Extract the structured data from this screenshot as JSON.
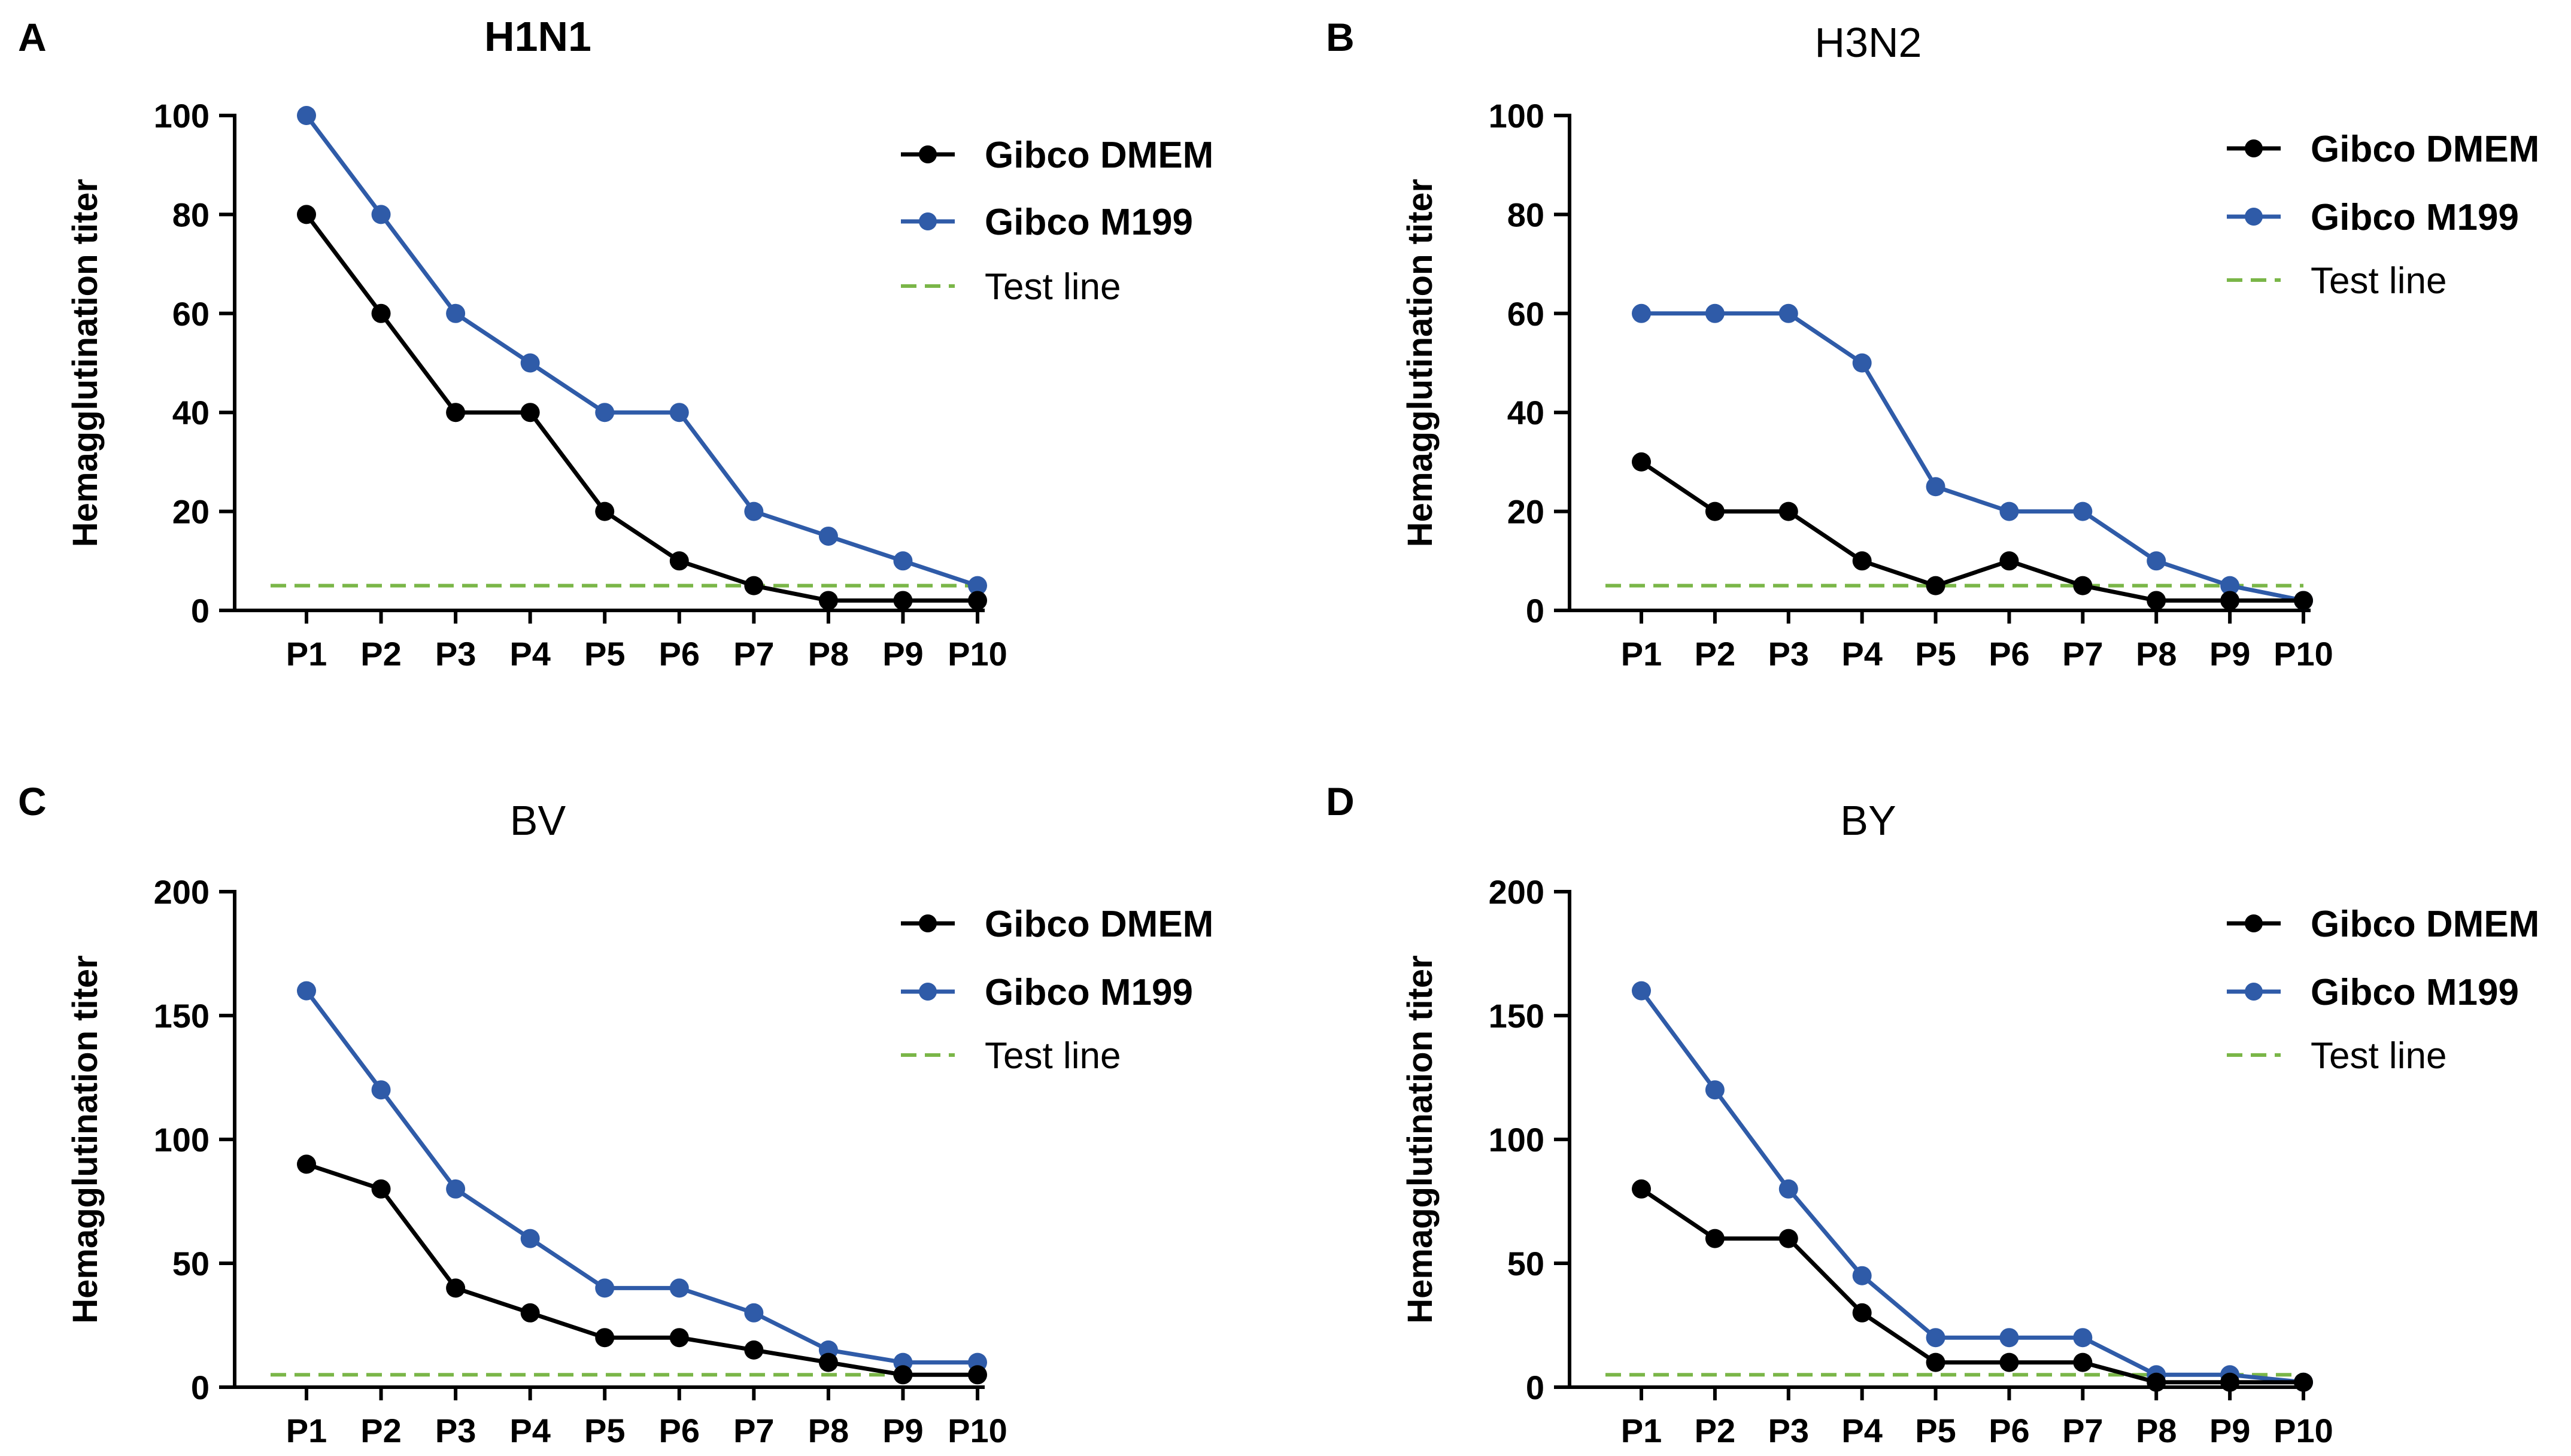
{
  "figure": {
    "colors": {
      "dmem": "#000000",
      "m199": "#2f5ba8",
      "test_line": "#7ab648"
    }
  },
  "chart_data": [
    {
      "type": "line",
      "panel": "A",
      "title": "H1N1",
      "title_bold": true,
      "xlabel": "",
      "ylabel": "Hemagglutination titer",
      "categories": [
        "P1",
        "P2",
        "P3",
        "P4",
        "P5",
        "P6",
        "P7",
        "P8",
        "P9",
        "P10"
      ],
      "ylim": [
        0,
        100
      ],
      "yticks": [
        0,
        20,
        40,
        60,
        80,
        100
      ],
      "legend_position": "top-right",
      "series": [
        {
          "name": "Gibco DMEM",
          "color": "#000000",
          "values": [
            80,
            60,
            40,
            40,
            20,
            10,
            5,
            2,
            2,
            2
          ]
        },
        {
          "name": "Gibco M199",
          "color": "#2f5ba8",
          "values": [
            100,
            80,
            60,
            50,
            40,
            40,
            20,
            15,
            10,
            5
          ]
        }
      ],
      "reference_line": {
        "name": "Test line",
        "value": 5,
        "color": "#7ab648",
        "style": "dashed"
      }
    },
    {
      "type": "line",
      "panel": "B",
      "title": "H3N2",
      "title_bold": false,
      "xlabel": "",
      "ylabel": "Hemagglutination titer",
      "categories": [
        "P1",
        "P2",
        "P3",
        "P4",
        "P5",
        "P6",
        "P7",
        "P8",
        "P9",
        "P10"
      ],
      "ylim": [
        0,
        100
      ],
      "yticks": [
        0,
        20,
        40,
        60,
        80,
        100
      ],
      "legend_position": "top-right",
      "series": [
        {
          "name": "Gibco DMEM",
          "color": "#000000",
          "values": [
            30,
            20,
            20,
            10,
            5,
            10,
            5,
            2,
            2,
            2
          ]
        },
        {
          "name": "Gibco M199",
          "color": "#2f5ba8",
          "values": [
            60,
            60,
            60,
            50,
            25,
            20,
            20,
            10,
            5,
            2
          ]
        }
      ],
      "reference_line": {
        "name": "Test line",
        "value": 5,
        "color": "#7ab648",
        "style": "dashed"
      }
    },
    {
      "type": "line",
      "panel": "C",
      "title": "BV",
      "title_bold": false,
      "xlabel": "",
      "ylabel": "Hemagglutination titer",
      "categories": [
        "P1",
        "P2",
        "P3",
        "P4",
        "P5",
        "P6",
        "P7",
        "P8",
        "P9",
        "P10"
      ],
      "ylim": [
        0,
        200
      ],
      "yticks": [
        0,
        50,
        100,
        150,
        200
      ],
      "legend_position": "top-right",
      "series": [
        {
          "name": "Gibco DMEM",
          "color": "#000000",
          "values": [
            90,
            80,
            40,
            30,
            20,
            20,
            15,
            10,
            5,
            5
          ]
        },
        {
          "name": "Gibco M199",
          "color": "#2f5ba8",
          "values": [
            160,
            120,
            80,
            60,
            40,
            40,
            30,
            15,
            10,
            10
          ]
        }
      ],
      "reference_line": {
        "name": "Test line",
        "value": 5,
        "color": "#7ab648",
        "style": "dashed"
      }
    },
    {
      "type": "line",
      "panel": "D",
      "title": "BY",
      "title_bold": false,
      "xlabel": "",
      "ylabel": "Hemagglutination titer",
      "categories": [
        "P1",
        "P2",
        "P3",
        "P4",
        "P5",
        "P6",
        "P7",
        "P8",
        "P9",
        "P10"
      ],
      "ylim": [
        0,
        200
      ],
      "yticks": [
        0,
        50,
        100,
        150,
        200
      ],
      "legend_position": "top-right",
      "series": [
        {
          "name": "Gibco DMEM",
          "color": "#000000",
          "values": [
            80,
            60,
            60,
            30,
            10,
            10,
            10,
            2,
            2,
            2
          ]
        },
        {
          "name": "Gibco M199",
          "color": "#2f5ba8",
          "values": [
            160,
            120,
            80,
            45,
            20,
            20,
            20,
            5,
            5,
            2
          ]
        }
      ],
      "reference_line": {
        "name": "Test line",
        "value": 5,
        "color": "#7ab648",
        "style": "dashed"
      }
    }
  ]
}
